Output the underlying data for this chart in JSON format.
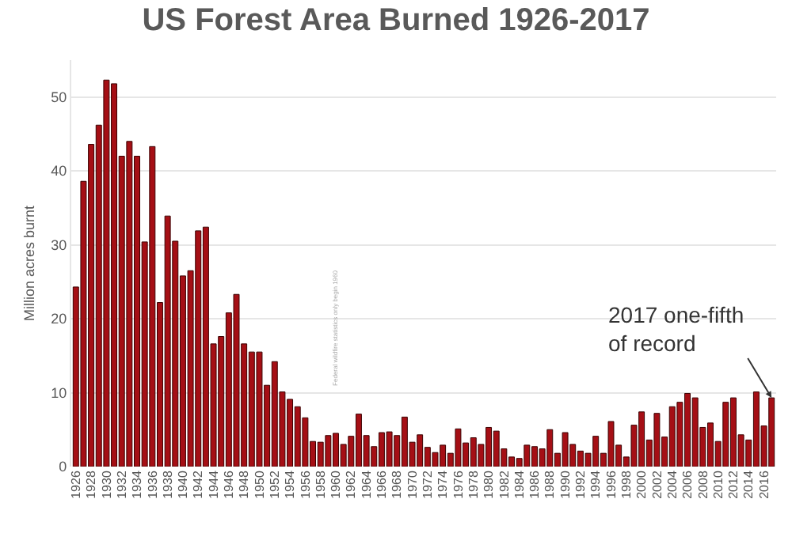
{
  "chart_data": {
    "type": "bar",
    "title": "US Forest Area Burned 1926-2017",
    "ylabel": "Million acres burnt",
    "categories": [
      "1926",
      null,
      "1928",
      null,
      "1930",
      null,
      "1932",
      null,
      "1934",
      null,
      "1936",
      null,
      "1938",
      null,
      "1940",
      null,
      "1942",
      null,
      "1944",
      null,
      "1946",
      null,
      "1948",
      null,
      "1950",
      null,
      "1952",
      null,
      "1954",
      null,
      "1956",
      null,
      "1958",
      null,
      "1960",
      null,
      "1962",
      null,
      "1964",
      null,
      "1966",
      null,
      "1968",
      null,
      "1970",
      null,
      "1972",
      null,
      "1974",
      null,
      "1976",
      null,
      "1978",
      null,
      "1980",
      null,
      "1982",
      null,
      "1984",
      null,
      "1986",
      null,
      "1988",
      null,
      "1990",
      null,
      "1992",
      null,
      "1994",
      null,
      "1996",
      null,
      "1998",
      null,
      "2000",
      null,
      "2002",
      null,
      "2004",
      null,
      "2006",
      null,
      "2008",
      null,
      "2010",
      null,
      "2012",
      null,
      "2014",
      null,
      "2016",
      null
    ],
    "values": [
      24.3,
      38.6,
      43.6,
      46.2,
      52.3,
      51.8,
      42.0,
      44.0,
      42.0,
      30.4,
      43.3,
      22.2,
      33.9,
      30.5,
      25.8,
      26.5,
      31.9,
      32.4,
      16.6,
      17.6,
      20.8,
      23.3,
      16.6,
      15.5,
      15.5,
      11.0,
      14.2,
      10.1,
      9.1,
      8.1,
      6.6,
      3.4,
      3.3,
      4.2,
      4.5,
      3.0,
      4.1,
      7.1,
      4.2,
      2.7,
      4.6,
      4.7,
      4.2,
      6.7,
      3.3,
      4.3,
      2.6,
      1.9,
      2.9,
      1.8,
      5.1,
      3.2,
      3.9,
      3.0,
      5.3,
      4.8,
      2.4,
      1.3,
      1.1,
      2.9,
      2.7,
      2.4,
      5.0,
      1.8,
      4.6,
      3.0,
      2.1,
      1.8,
      4.1,
      1.8,
      6.1,
      2.9,
      1.3,
      5.6,
      7.4,
      3.6,
      7.2,
      4.0,
      8.1,
      8.7,
      9.9,
      9.3,
      5.3,
      5.9,
      3.4,
      8.7,
      9.3,
      4.3,
      3.6,
      10.1,
      5.5,
      9.3
    ],
    "color": "#a50f15",
    "ylim": [
      0,
      55
    ],
    "yticks": [
      0,
      10,
      20,
      30,
      40,
      50
    ],
    "grid": "y",
    "annotations": [
      "2017 one-fifth\nof record",
      "Federal wildfire statistics only begin 1960"
    ]
  }
}
